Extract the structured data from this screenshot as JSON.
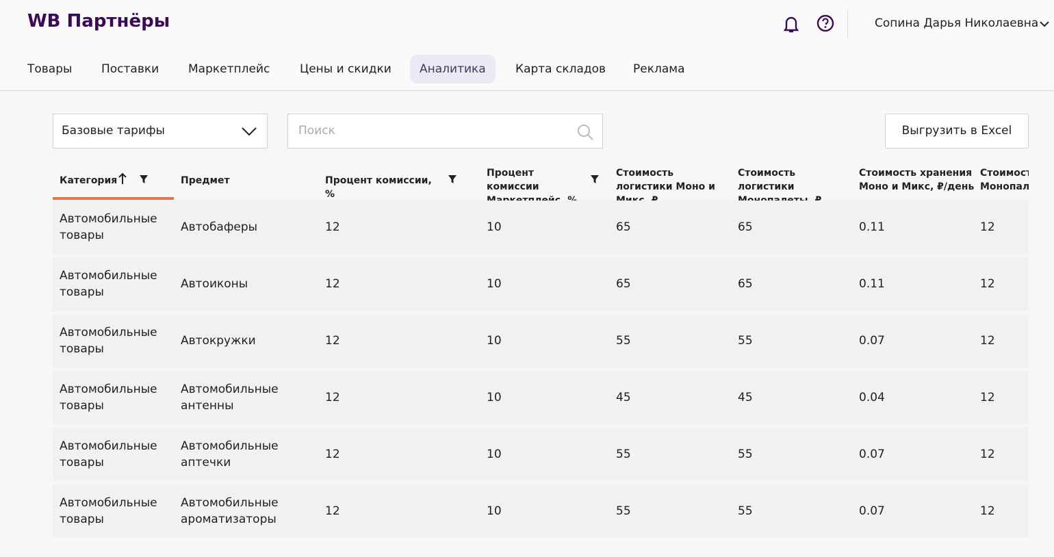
{
  "header": {
    "logo": "WB Партнёры",
    "user": "Сопина Дарья Николаевна"
  },
  "nav": [
    "Товары",
    "Поставки",
    "Маркетплейс",
    "Цены и скидки",
    "Аналитика",
    "Карта складов",
    "Реклама"
  ],
  "controls": {
    "tariff_select": "Базовые тарифы",
    "search_placeholder": "Поиск",
    "export_button": "Выгрузить в Excel"
  },
  "table": {
    "columns": [
      "Категория",
      "Предмет",
      "Процент комиссии, %",
      "Процент комиссии Маркетплейс, %",
      "Стоимость логистики Моно и Микс, ₽",
      "Стоимость логистики Монопалеты, ₽",
      "Стоимость хранения Моно и Микс, ₽/день",
      "Стоимост Монопале"
    ],
    "rows": [
      [
        "Автомобильные товары",
        "Автобаферы",
        "12",
        "10",
        "65",
        "65",
        "0.11",
        "12"
      ],
      [
        "Автомобильные товары",
        "Автоиконы",
        "12",
        "10",
        "65",
        "65",
        "0.11",
        "12"
      ],
      [
        "Автомобильные товары",
        "Автокружки",
        "12",
        "10",
        "55",
        "55",
        "0.07",
        "12"
      ],
      [
        "Автомобильные товары",
        "Автомобильные антенны",
        "12",
        "10",
        "45",
        "45",
        "0.04",
        "12"
      ],
      [
        "Автомобильные товары",
        "Автомобильные аптечки",
        "12",
        "10",
        "55",
        "55",
        "0.07",
        "12"
      ],
      [
        "Автомобильные товары",
        "Автомобильные ароматизаторы",
        "12",
        "10",
        "55",
        "55",
        "0.07",
        "12"
      ]
    ]
  }
}
